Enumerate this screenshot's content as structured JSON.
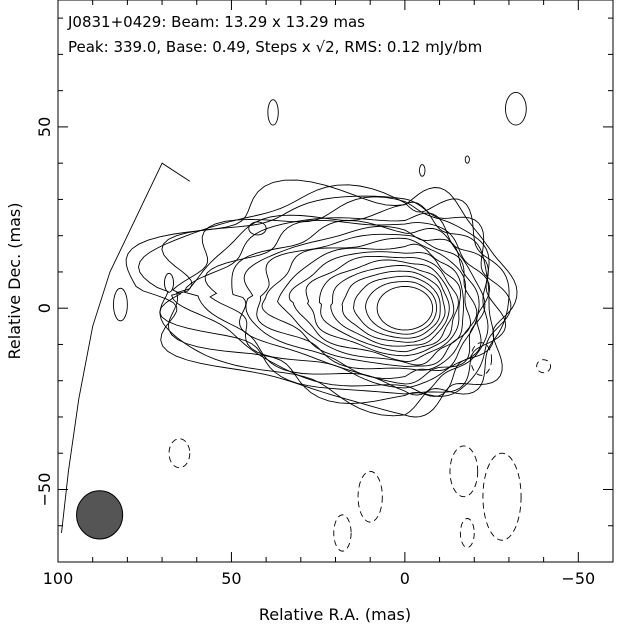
{
  "header": {
    "line1": "J0831+0429: Beam: 13.29 x 13.29 mas",
    "line2": "Peak: 339.0, Base: 0.49, Steps x √2, RMS: 0.12 mJy/bm"
  },
  "chart_data": {
    "type": "contour",
    "xlabel": "Relative R.A. (mas)",
    "ylabel": "Relative Dec. (mas)",
    "xlim": [
      100,
      -60
    ],
    "ylim": [
      -70,
      85
    ],
    "xticks": [
      100,
      50,
      0,
      -50
    ],
    "xtick_labels": [
      "100",
      "50",
      "0",
      "−50"
    ],
    "yticks": [
      50,
      0,
      -50
    ],
    "ytick_labels": [
      "50",
      "0",
      "−50"
    ],
    "peak": 339.0,
    "base": 0.49,
    "step_factor": "√2",
    "rms": 0.12,
    "unit": "mJy/bm",
    "beam": {
      "major": 13.29,
      "minor": 13.29,
      "center": [
        88,
        -57
      ]
    },
    "core": {
      "x": 0,
      "y": 0,
      "rx": 8,
      "ry": 6
    },
    "levels": 20,
    "positive_islands": [
      {
        "x": 42.5,
        "y": 22,
        "rx": 2.5,
        "ry": 1.8
      },
      {
        "x": 82,
        "y": 1,
        "rx": 2.0,
        "ry": 4.5
      },
      {
        "x": 68,
        "y": 7,
        "rx": 1.3,
        "ry": 2.6
      },
      {
        "x": 38,
        "y": 54,
        "rx": 1.5,
        "ry": 3.5
      },
      {
        "x": -32,
        "y": 55,
        "rx": 3.0,
        "ry": 4.5
      },
      {
        "x": -5,
        "y": 38,
        "rx": 0.8,
        "ry": 1.6
      },
      {
        "x": -18,
        "y": 41,
        "rx": 0.6,
        "ry": 1.0
      }
    ],
    "negative_islands": [
      {
        "x": 65,
        "y": -40,
        "rx": 3.0,
        "ry": 4.0
      },
      {
        "x": -22,
        "y": -14,
        "rx": 3.0,
        "ry": 4.5
      },
      {
        "x": -40,
        "y": -16,
        "rx": 2.0,
        "ry": 1.8
      },
      {
        "x": 10,
        "y": -52,
        "rx": 3.5,
        "ry": 7.0
      },
      {
        "x": -17,
        "y": -45,
        "rx": 4.0,
        "ry": 7.0
      },
      {
        "x": -28,
        "y": -52,
        "rx": 5.5,
        "ry": 12.0
      },
      {
        "x": 18,
        "y": -62,
        "rx": 2.5,
        "ry": 5.0
      },
      {
        "x": -18,
        "y": -62,
        "rx": 2.0,
        "ry": 4.0
      }
    ]
  }
}
